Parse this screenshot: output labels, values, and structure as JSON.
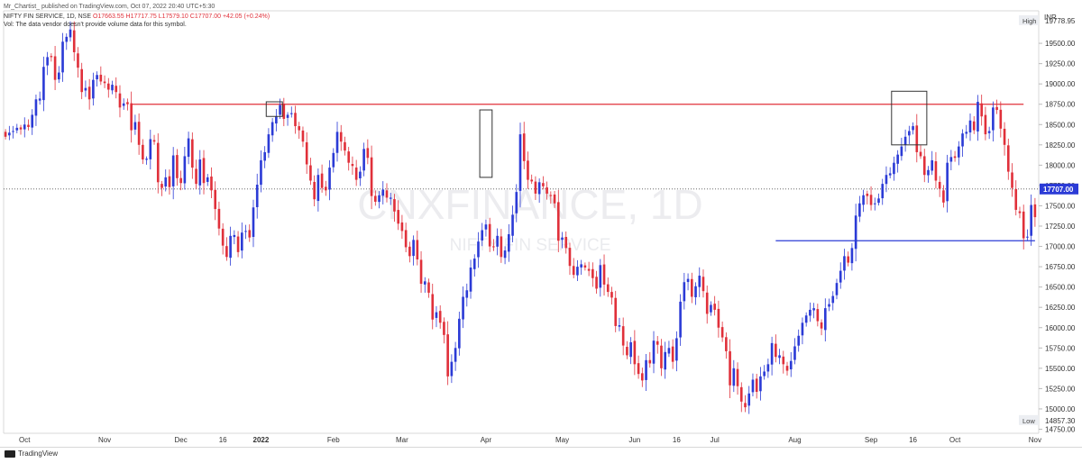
{
  "header": {
    "published": "Mr_Chartist_ published on TradingView.com, Oct 07, 2022 20:40 UTC+5:30",
    "symbol": "NIFTY FIN SERVICE, 1D, NSE",
    "ohlc": "O17663.55  H17717.75  L17579.10  C17707.00  +42.05 (+0.24%)",
    "volume_note": "Vol: The data vendor doesn't provide volume data for this symbol."
  },
  "watermark": {
    "ticker": "CNXFINANCE, 1D",
    "name": "NIFTY FIN SERVICE"
  },
  "footer": {
    "brand": "TradingView"
  },
  "colors": {
    "up": "#2b3bd6",
    "down": "#e0303a",
    "resistance": "#e0303a",
    "support": "#2b3bd6"
  },
  "chart_data": {
    "type": "candlestick",
    "currency": "INR",
    "ylim": [
      14700,
      19900
    ],
    "y_ticks": [
      14750,
      15000,
      15250,
      15500,
      15750,
      16000,
      16250,
      16500,
      16750,
      17000,
      17250,
      17500,
      17750,
      18000,
      18250,
      18500,
      18750,
      19000,
      19250,
      19500
    ],
    "y_tick_labels": [
      "14750.00",
      "15000.00",
      "15250.00",
      "15500.00",
      "15750.00",
      "16000.00",
      "16250.00",
      "16500.00",
      "16750.00",
      "17000.00",
      "17250.00",
      "17500.00",
      "17750.00",
      "18000.00",
      "18250.00",
      "18500.00",
      "18750.00",
      "19000.00",
      "19250.00",
      "19500.00"
    ],
    "x_labels": [
      "Oct",
      "Nov",
      "Dec",
      "16",
      "2022",
      "Feb",
      "Mar",
      "Apr",
      "May",
      "Jun",
      "16",
      "Jul",
      "Aug",
      "Sep",
      "16",
      "Oct",
      "Nov"
    ],
    "x_label_positions": [
      5,
      26,
      46,
      57,
      67,
      86,
      104,
      126,
      146,
      165,
      176,
      186,
      207,
      227,
      238,
      249,
      270
    ],
    "high_label": {
      "text": "High",
      "value": 19778.95,
      "display": "19778.95"
    },
    "low_label": {
      "text": "Low",
      "value": 14857.3,
      "display": "14857.30"
    },
    "last_price": {
      "value": 17707.0,
      "display": "17707.00"
    },
    "resistance": {
      "value": 18750,
      "from_bar": 33,
      "to_bar": 267
    },
    "support": {
      "value": 17070,
      "from_bar": 202,
      "to_bar": 270
    },
    "annotation_boxes": [
      {
        "from_bar": 69,
        "to_bar": 72,
        "low": 18600,
        "high": 18780
      },
      {
        "from_bar": 125,
        "to_bar": 127,
        "low": 17850,
        "high": 18680
      },
      {
        "from_bar": 233,
        "to_bar": 241,
        "low": 18250,
        "high": 18910
      }
    ],
    "closes": [
      18350,
      18400,
      18420,
      18460,
      18440,
      18500,
      18470,
      18620,
      18810,
      18820,
      19210,
      19330,
      19330,
      19050,
      19140,
      19520,
      19580,
      19670,
      19390,
      19200,
      18900,
      18950,
      18810,
      19050,
      19110,
      19030,
      19010,
      18930,
      18990,
      18900,
      18710,
      18760,
      18750,
      18430,
      18530,
      18250,
      18070,
      18080,
      18320,
      18290,
      17790,
      17720,
      17850,
      17730,
      18120,
      17840,
      17780,
      18110,
      18330,
      17970,
      17770,
      18070,
      17780,
      17850,
      17690,
      17460,
      17220,
      17010,
      16870,
      17130,
      17140,
      16930,
      17170,
      17190,
      17110,
      17480,
      17760,
      18060,
      18160,
      18380,
      18530,
      18600,
      18740,
      18570,
      18620,
      18640,
      18480,
      18430,
      18290,
      18010,
      17810,
      17580,
      17880,
      17720,
      17690,
      17970,
      18150,
      18410,
      18290,
      18180,
      18030,
      17990,
      17820,
      17920,
      18200,
      18090,
      17620,
      17550,
      17630,
      17700,
      17600,
      17600,
      17430,
      17280,
      17190,
      16990,
      16880,
      17080,
      16840,
      16540,
      16570,
      16430,
      16100,
      16190,
      16060,
      15910,
      15400,
      15580,
      15750,
      16110,
      16380,
      16460,
      16740,
      16850,
      17060,
      17200,
      17270,
      17000,
      17000,
      17130,
      16870,
      16950,
      17150,
      17390,
      17670,
      18380,
      18050,
      17820,
      17800,
      17650,
      17790,
      17740,
      17650,
      17620,
      17530,
      17070,
      17110,
      16980,
      16760,
      16650,
      16750,
      16780,
      16740,
      16700,
      16610,
      16480,
      16770,
      16530,
      16440,
      16370,
      16020,
      16030,
      15780,
      15660,
      15820,
      15550,
      15430,
      15350,
      15600,
      15560,
      15840,
      15790,
      15500,
      15700,
      15750,
      15580,
      15870,
      16320,
      16560,
      16600,
      16380,
      16510,
      16640,
      16450,
      16170,
      16280,
      16220,
      16000,
      15880,
      15710,
      15290,
      15500,
      15280,
      15090,
      15020,
      15190,
      15360,
      15210,
      15400,
      15460,
      15550,
      15810,
      15640,
      15660,
      15550,
      15470,
      15590,
      15770,
      15900,
      16060,
      16150,
      16220,
      16240,
      16080,
      15990,
      16240,
      16290,
      16390,
      16550,
      16700,
      16880,
      16800,
      16980,
      17380,
      17530,
      17630,
      17620,
      17510,
      17530,
      17590,
      17770,
      17880,
      17900,
      18030,
      18130,
      18230,
      18350,
      18420,
      18480,
      18160,
      18110,
      17880,
      17940,
      18060,
      17810,
      17710,
      17540,
      18030,
      18100,
      18090,
      18230,
      18390,
      18410,
      18550,
      18430,
      18780,
      18600,
      18380,
      18420,
      18710,
      18680,
      18450,
      18250,
      17920,
      17720,
      17450,
      17410,
      17100,
      17120,
      17510,
      17360,
      17660,
      17800,
      17707
    ]
  }
}
